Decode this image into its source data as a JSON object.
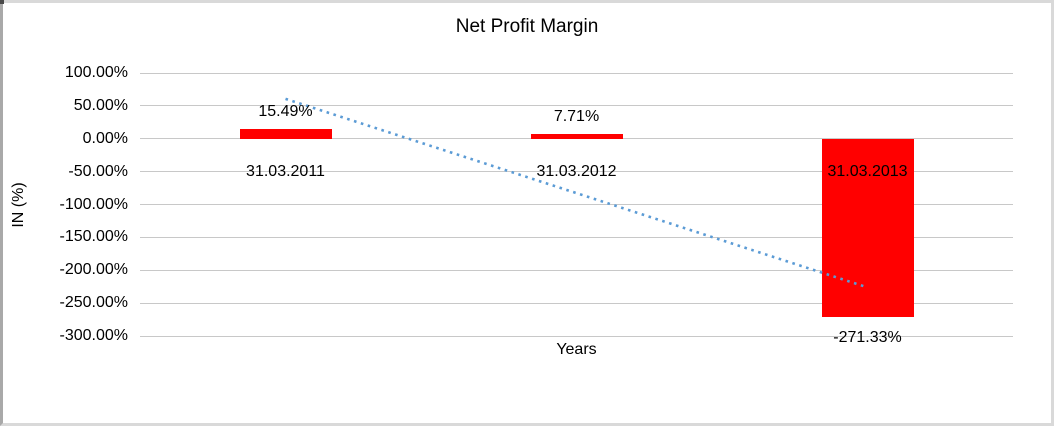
{
  "chart_data": {
    "type": "bar",
    "title": "Net Profit Margin",
    "xlabel": "Years",
    "ylabel": "IN (%)",
    "categories": [
      "31.03.2011",
      "31.03.2012",
      "31.03.2013"
    ],
    "values": [
      15.49,
      7.71,
      -271.33
    ],
    "data_labels": [
      "15.49%",
      "7.71%",
      "-271.33%"
    ],
    "y_ticks": {
      "values": [
        100,
        50,
        0,
        -50,
        -100,
        -150,
        -200,
        -250,
        -300
      ],
      "labels": [
        "100.00%",
        "50.00%",
        "0.00%",
        "-50.00%",
        "-100.00%",
        "-150.00%",
        "-200.00%",
        "-250.00%",
        "-300.00%"
      ]
    },
    "ylim": [
      -300,
      100
    ],
    "grid": true,
    "legend": "none",
    "colors": {
      "bar": "#ff0000",
      "trendline": "#5b9bd5",
      "gridline": "#c8c8c8",
      "text": "#000000",
      "frame": "#d9d9d9"
    },
    "trendline": {
      "style": "dotted",
      "start_value": 60.7,
      "end_value": -226.1
    }
  }
}
